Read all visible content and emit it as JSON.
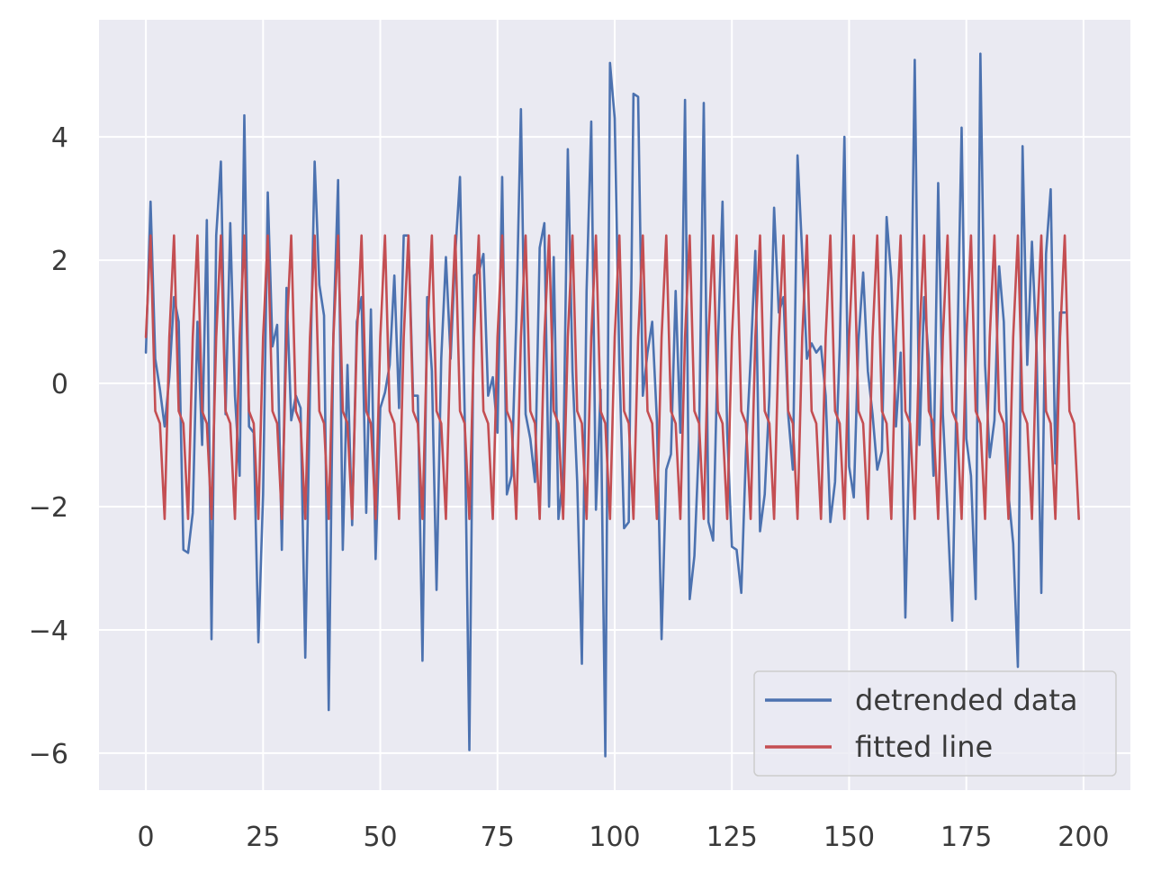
{
  "chart_data": {
    "type": "line",
    "title": "",
    "xlabel": "",
    "ylabel": "",
    "xlim": [
      -10,
      210
    ],
    "ylim": [
      -6.6,
      5.9
    ],
    "xticks": [
      0,
      25,
      50,
      75,
      100,
      125,
      150,
      175,
      200
    ],
    "xtick_labels": [
      "0",
      "25",
      "50",
      "75",
      "100",
      "125",
      "150",
      "175",
      "200"
    ],
    "yticks": [
      -6,
      -4,
      -2,
      0,
      2,
      4
    ],
    "ytick_labels": [
      "−6",
      "−4",
      "−2",
      "0",
      "2",
      "4"
    ],
    "grid": true,
    "legend_position": "lower-right",
    "series": [
      {
        "name": "detrended data",
        "color": "#4c72b0",
        "values": [
          0.5,
          2.95,
          0.4,
          -0.1,
          -0.7,
          0.1,
          1.4,
          1.0,
          -2.7,
          -2.75,
          -2.1,
          1.0,
          -1.0,
          2.65,
          -4.15,
          2.4,
          3.6,
          -0.5,
          2.6,
          -0.2,
          -1.5,
          4.35,
          -0.7,
          -0.8,
          -4.2,
          -1.8,
          3.1,
          0.6,
          0.95,
          -2.7,
          1.55,
          -0.6,
          -0.2,
          -0.4,
          -4.45,
          -0.1,
          3.6,
          1.6,
          1.1,
          -5.3,
          0.8,
          3.3,
          -2.7,
          0.3,
          -2.3,
          1.0,
          1.4,
          -2.1,
          1.2,
          -2.85,
          -0.4,
          -0.15,
          0.3,
          1.75,
          -0.4,
          2.4,
          2.4,
          -0.2,
          -0.2,
          -4.5,
          1.4,
          0.2,
          -3.35,
          0.4,
          2.05,
          0.4,
          2.1,
          3.35,
          -0.5,
          -5.95,
          1.75,
          1.8,
          2.1,
          -0.2,
          0.1,
          -0.8,
          3.35,
          -1.8,
          -1.5,
          1.0,
          4.45,
          -0.5,
          -0.9,
          -1.6,
          2.2,
          2.6,
          -2.0,
          2.05,
          -2.2,
          -1.5,
          3.8,
          0.2,
          -1.6,
          -4.55,
          1.5,
          4.25,
          -2.05,
          -0.1,
          -6.05,
          5.2,
          4.3,
          0.3,
          -2.35,
          -2.25,
          4.7,
          4.65,
          -0.2,
          0.5,
          1.0,
          -0.6,
          -4.15,
          -1.4,
          -1.15,
          1.5,
          -0.8,
          4.6,
          -3.5,
          -2.8,
          -0.9,
          4.55,
          -2.25,
          -2.55,
          0.6,
          2.95,
          -0.8,
          -2.65,
          -2.7,
          -3.4,
          -1.1,
          0.4,
          2.15,
          -2.4,
          -1.8,
          -0.2,
          2.85,
          1.15,
          1.4,
          -0.5,
          -1.4,
          3.7,
          2.1,
          0.4,
          0.65,
          0.5,
          0.6,
          -0.2,
          -2.25,
          -1.6,
          0.6,
          4.0,
          -1.35,
          -1.85,
          0.7,
          1.8,
          0.2,
          -0.5,
          -1.4,
          -1.1,
          2.7,
          1.7,
          -0.7,
          0.5,
          -3.8,
          -0.4,
          5.25,
          -1.0,
          1.4,
          0.4,
          -1.5,
          3.25,
          -0.5,
          -2.1,
          -3.85,
          0.2,
          4.15,
          -0.9,
          -1.5,
          -3.5,
          5.35,
          0.3,
          -1.2,
          -0.6,
          1.9,
          1.0,
          -1.8,
          -2.6,
          -4.6,
          3.85,
          0.3,
          2.3,
          0.5,
          -3.4,
          2.1,
          3.15,
          -1.3,
          1.15,
          1.15
        ],
        "x_start": 0,
        "x_step": 1
      },
      {
        "name": "fitted line",
        "color": "#c44e52",
        "values": [
          0.75,
          2.4,
          -0.45,
          -0.65,
          -2.2,
          0.75,
          2.4,
          -0.45,
          -0.65,
          -2.2,
          0.75,
          2.4,
          -0.45,
          -0.65,
          -2.2,
          0.75,
          2.4,
          -0.45,
          -0.65,
          -2.2,
          0.75,
          2.4,
          -0.45,
          -0.65,
          -2.2,
          0.75,
          2.4,
          -0.45,
          -0.65,
          -2.2,
          0.75,
          2.4,
          -0.45,
          -0.65,
          -2.2,
          0.75,
          2.4,
          -0.45,
          -0.65,
          -2.2,
          0.75,
          2.4,
          -0.45,
          -0.65,
          -2.2,
          0.75,
          2.4,
          -0.45,
          -0.65,
          -2.2,
          0.75,
          2.4,
          -0.45,
          -0.65,
          -2.2,
          0.75,
          2.4,
          -0.45,
          -0.65,
          -2.2,
          0.75,
          2.4,
          -0.45,
          -0.65,
          -2.2,
          0.75,
          2.4,
          -0.45,
          -0.65,
          -2.2,
          0.75,
          2.4,
          -0.45,
          -0.65,
          -2.2,
          0.75,
          2.4,
          -0.45,
          -0.65,
          -2.2,
          0.75,
          2.4,
          -0.45,
          -0.65,
          -2.2,
          0.75,
          2.4,
          -0.45,
          -0.65,
          -2.2,
          0.75,
          2.4,
          -0.45,
          -0.65,
          -2.2,
          0.75,
          2.4,
          -0.45,
          -0.65,
          -2.2,
          0.75,
          2.4,
          -0.45,
          -0.65,
          -2.2,
          0.75,
          2.4,
          -0.45,
          -0.65,
          -2.2,
          0.75,
          2.4,
          -0.45,
          -0.65,
          -2.2,
          0.75,
          2.4,
          -0.45,
          -0.65,
          -2.2,
          0.75,
          2.4,
          -0.45,
          -0.65,
          -2.2,
          0.75,
          2.4,
          -0.45,
          -0.65,
          -2.2,
          0.75,
          2.4,
          -0.45,
          -0.65,
          -2.2,
          0.75,
          2.4,
          -0.45,
          -0.65,
          -2.2,
          0.75,
          2.4,
          -0.45,
          -0.65,
          -2.2,
          0.75,
          2.4,
          -0.45,
          -0.65,
          -2.2,
          0.75,
          2.4,
          -0.45,
          -0.65,
          -2.2,
          0.75,
          2.4,
          -0.45,
          -0.65,
          -2.2,
          0.75,
          2.4,
          -0.45,
          -0.65,
          -2.2,
          0.75,
          2.4,
          -0.45,
          -0.65,
          -2.2,
          0.75,
          2.4,
          -0.45,
          -0.65,
          -2.2,
          0.75,
          2.4,
          -0.45,
          -0.65,
          -2.2,
          0.75,
          2.4,
          -0.45,
          -0.65,
          -2.2,
          0.75,
          2.4,
          -0.45,
          -0.65,
          -2.2,
          0.75,
          2.4,
          -0.45,
          -0.65,
          -2.2,
          0.75,
          2.4,
          -0.45,
          -0.65,
          -2.2
        ],
        "x_start": 0,
        "x_step": 1
      }
    ]
  }
}
